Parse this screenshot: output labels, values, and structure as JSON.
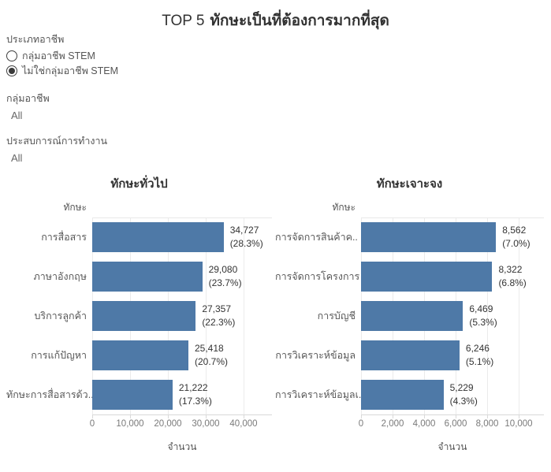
{
  "title": {
    "prefix": "TOP 5",
    "main": "ทักษะเป็นที่ต้องการมากที่สุด"
  },
  "filters": {
    "occupation_type": {
      "label": "ประเภทอาชีพ",
      "options": [
        {
          "label": "กลุ่มอาชีพ STEM",
          "selected": false
        },
        {
          "label": "ไม่ใช่กลุ่มอาชีพ STEM",
          "selected": true
        }
      ]
    },
    "occupation_group": {
      "label": "กลุ่มอาชีพ",
      "value": "All"
    },
    "work_experience": {
      "label": "ประสบการณ์การทำงาน",
      "value": "All"
    }
  },
  "chart_data": [
    {
      "type": "bar",
      "orientation": "horizontal",
      "title": "ทักษะทั่วไป",
      "row_header": "ทักษะ",
      "xlabel": "จำนวน",
      "categories": [
        "การสื่อสาร",
        "ภาษาอังกฤษ",
        "บริการลูกค้า",
        "การแก้ปัญหา",
        "ทักษะการสื่อสารด้ว.."
      ],
      "values": [
        34727,
        29080,
        27357,
        25418,
        21222
      ],
      "value_labels": [
        "34,727",
        "29,080",
        "27,357",
        "25,418",
        "21,222"
      ],
      "percent_labels": [
        "(28.3%)",
        "(23.7%)",
        "(22.3%)",
        "(20.7%)",
        "(17.3%)"
      ],
      "tick_values": [
        0,
        10000,
        20000,
        30000,
        40000
      ],
      "tick_labels": [
        "0",
        "10,000",
        "20,000",
        "30,000",
        "40,000"
      ],
      "axis_max": 47500,
      "grid": true,
      "bar_color": "#4e79a7"
    },
    {
      "type": "bar",
      "orientation": "horizontal",
      "title": "ทักษะเจาะจง",
      "row_header": "ทักษะ",
      "xlabel": "จำนวน",
      "categories": [
        "การจัดการสินค้าค..",
        "การจัดการโครงการ",
        "การบัญชี",
        "การวิเคราะห์ข้อมูล",
        "การวิเคราะห์ข้อมูลเ.."
      ],
      "values": [
        8562,
        8322,
        6469,
        6246,
        5229
      ],
      "value_labels": [
        "8,562",
        "8,322",
        "6,469",
        "6,246",
        "5,229"
      ],
      "percent_labels": [
        "(7.0%)",
        "(6.8%)",
        "(5.3%)",
        "(5.1%)",
        "(4.3%)"
      ],
      "tick_values": [
        0,
        2000,
        4000,
        6000,
        8000,
        10000
      ],
      "tick_labels": [
        "0",
        "2,000",
        "4,000",
        "6,000",
        "8,000",
        "10,000"
      ],
      "axis_max": 11600,
      "grid": true,
      "bar_color": "#4e79a7"
    }
  ]
}
